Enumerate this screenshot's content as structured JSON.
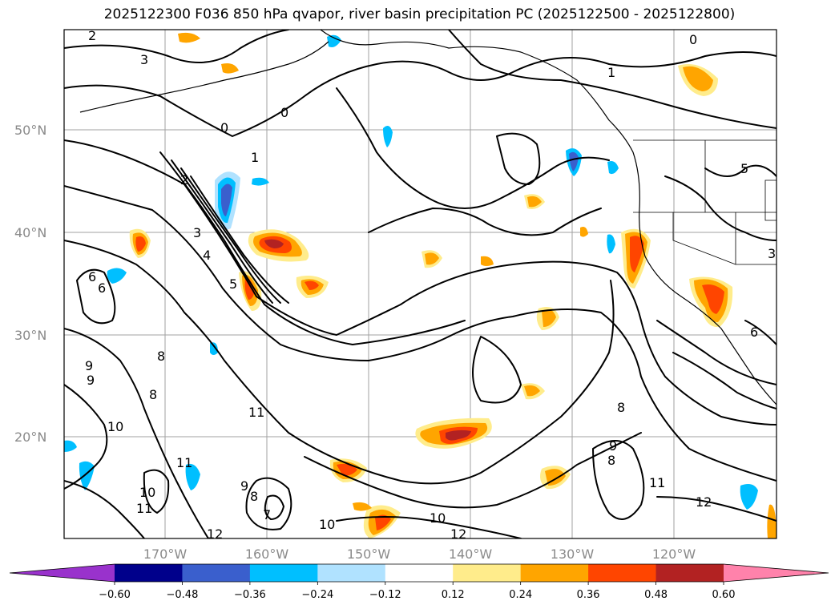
{
  "title": "2025122300 F036 850 hPa qvapor, river basin precipitation PC (2025122500 - 2025122800)",
  "lat_labels": [
    "50°N",
    "40°N",
    "30°N",
    "20°N"
  ],
  "lon_labels": [
    "170°W",
    "160°W",
    "150°W",
    "140°W",
    "130°W",
    "120°W"
  ],
  "colorbar": {
    "colors": [
      "#9932cc",
      "#00008b",
      "#3a5fcd",
      "#00bfff",
      "#b0e2ff",
      "#ffffff",
      "#ffec8b",
      "#ffa500",
      "#ff4500",
      "#b22222",
      "#ff82ab"
    ],
    "tick_labels": [
      "−0.60",
      "−0.48",
      "−0.36",
      "−0.24",
      "−0.12",
      "0.12",
      "0.24",
      "0.36",
      "0.48",
      "0.60"
    ]
  },
  "contour_labels": [
    "2",
    "3",
    "0",
    "1",
    "2",
    "3",
    "4",
    "5",
    "6",
    "6",
    "8",
    "9",
    "9",
    "8",
    "10",
    "11",
    "10",
    "11",
    "11",
    "9",
    "8",
    "7",
    "10",
    "12",
    "10",
    "12",
    "11",
    "12",
    "9",
    "8",
    "8",
    "0",
    "1",
    "5",
    "3",
    "6",
    "0"
  ]
}
